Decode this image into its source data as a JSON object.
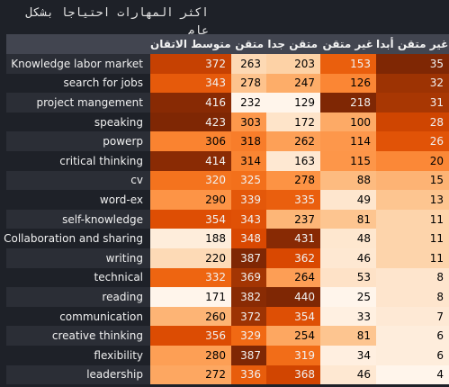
{
  "chart_data": {
    "type": "table",
    "title": "اكثر المهارات احتياجا بشكل عام",
    "columns": [
      "متوسط الاتقان",
      "متقن",
      "متقن جدا",
      "غير متقن",
      "غير متقن أبدا"
    ],
    "rows": [
      {
        "label": "Knowledge labor market",
        "values": [
          372,
          263,
          203,
          153,
          35
        ]
      },
      {
        "label": "search for jobs",
        "values": [
          343,
          278,
          247,
          126,
          32
        ]
      },
      {
        "label": "project mangement",
        "values": [
          416,
          232,
          129,
          218,
          31
        ]
      },
      {
        "label": "speaking",
        "values": [
          423,
          303,
          172,
          100,
          28
        ]
      },
      {
        "label": "powerp",
        "values": [
          306,
          318,
          262,
          114,
          26
        ]
      },
      {
        "label": "critical thinking",
        "values": [
          414,
          314,
          163,
          115,
          20
        ]
      },
      {
        "label": "cv",
        "values": [
          320,
          325,
          278,
          88,
          15
        ]
      },
      {
        "label": "word-ex",
        "values": [
          290,
          339,
          335,
          49,
          13
        ]
      },
      {
        "label": "self-knowledge",
        "values": [
          354,
          343,
          237,
          81,
          11
        ]
      },
      {
        "label": "Collaboration and sharing",
        "values": [
          188,
          348,
          431,
          48,
          11
        ]
      },
      {
        "label": "writing",
        "values": [
          220,
          387,
          362,
          46,
          11
        ]
      },
      {
        "label": "technical",
        "values": [
          332,
          369,
          264,
          53,
          8
        ]
      },
      {
        "label": "reading",
        "values": [
          171,
          382,
          440,
          25,
          8
        ]
      },
      {
        "label": "communication",
        "values": [
          260,
          372,
          354,
          33,
          7
        ]
      },
      {
        "label": "creative thinking",
        "values": [
          356,
          329,
          254,
          81,
          6
        ]
      },
      {
        "label": "flexibility",
        "values": [
          280,
          387,
          319,
          34,
          6
        ]
      },
      {
        "label": "leadership",
        "values": [
          272,
          336,
          368,
          46,
          4
        ]
      }
    ],
    "colormap": "Oranges, per column",
    "colors": {
      "background": "#1e2128",
      "header_bg": "#424550",
      "row_alt": "#2b2e36"
    }
  }
}
